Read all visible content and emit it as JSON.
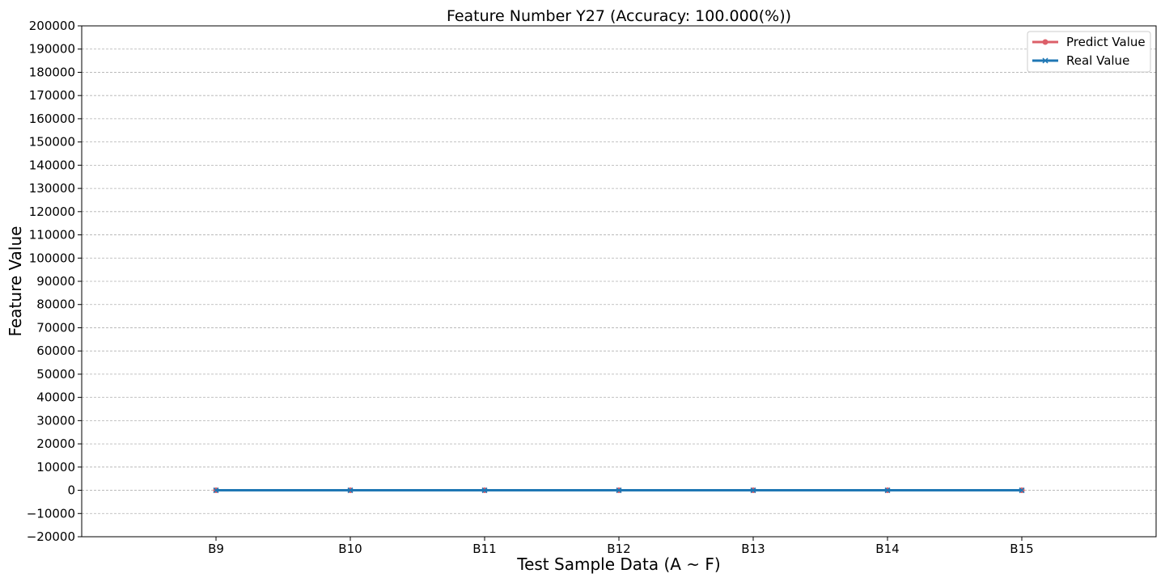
{
  "chart_data": {
    "type": "line",
    "title": "Feature Number Y27 (Accuracy: 100.000(%))",
    "xlabel": "Test Sample Data (A ~ F)",
    "ylabel": "Feature Value",
    "categories": [
      "B9",
      "B10",
      "B11",
      "B12",
      "B13",
      "B14",
      "B15"
    ],
    "ylim": [
      -20000,
      200000
    ],
    "ytick_step": 10000,
    "grid": "horizontal dashed",
    "legend_position": "top-right",
    "series": [
      {
        "name": "Predict Value",
        "color": "#dc5f69",
        "marker": "circle",
        "values": [
          0,
          0,
          0,
          0,
          0,
          0,
          0
        ]
      },
      {
        "name": "Real Value",
        "color": "#1f77b4",
        "marker": "x",
        "values": [
          0,
          0,
          0,
          0,
          0,
          0,
          0
        ]
      }
    ]
  }
}
